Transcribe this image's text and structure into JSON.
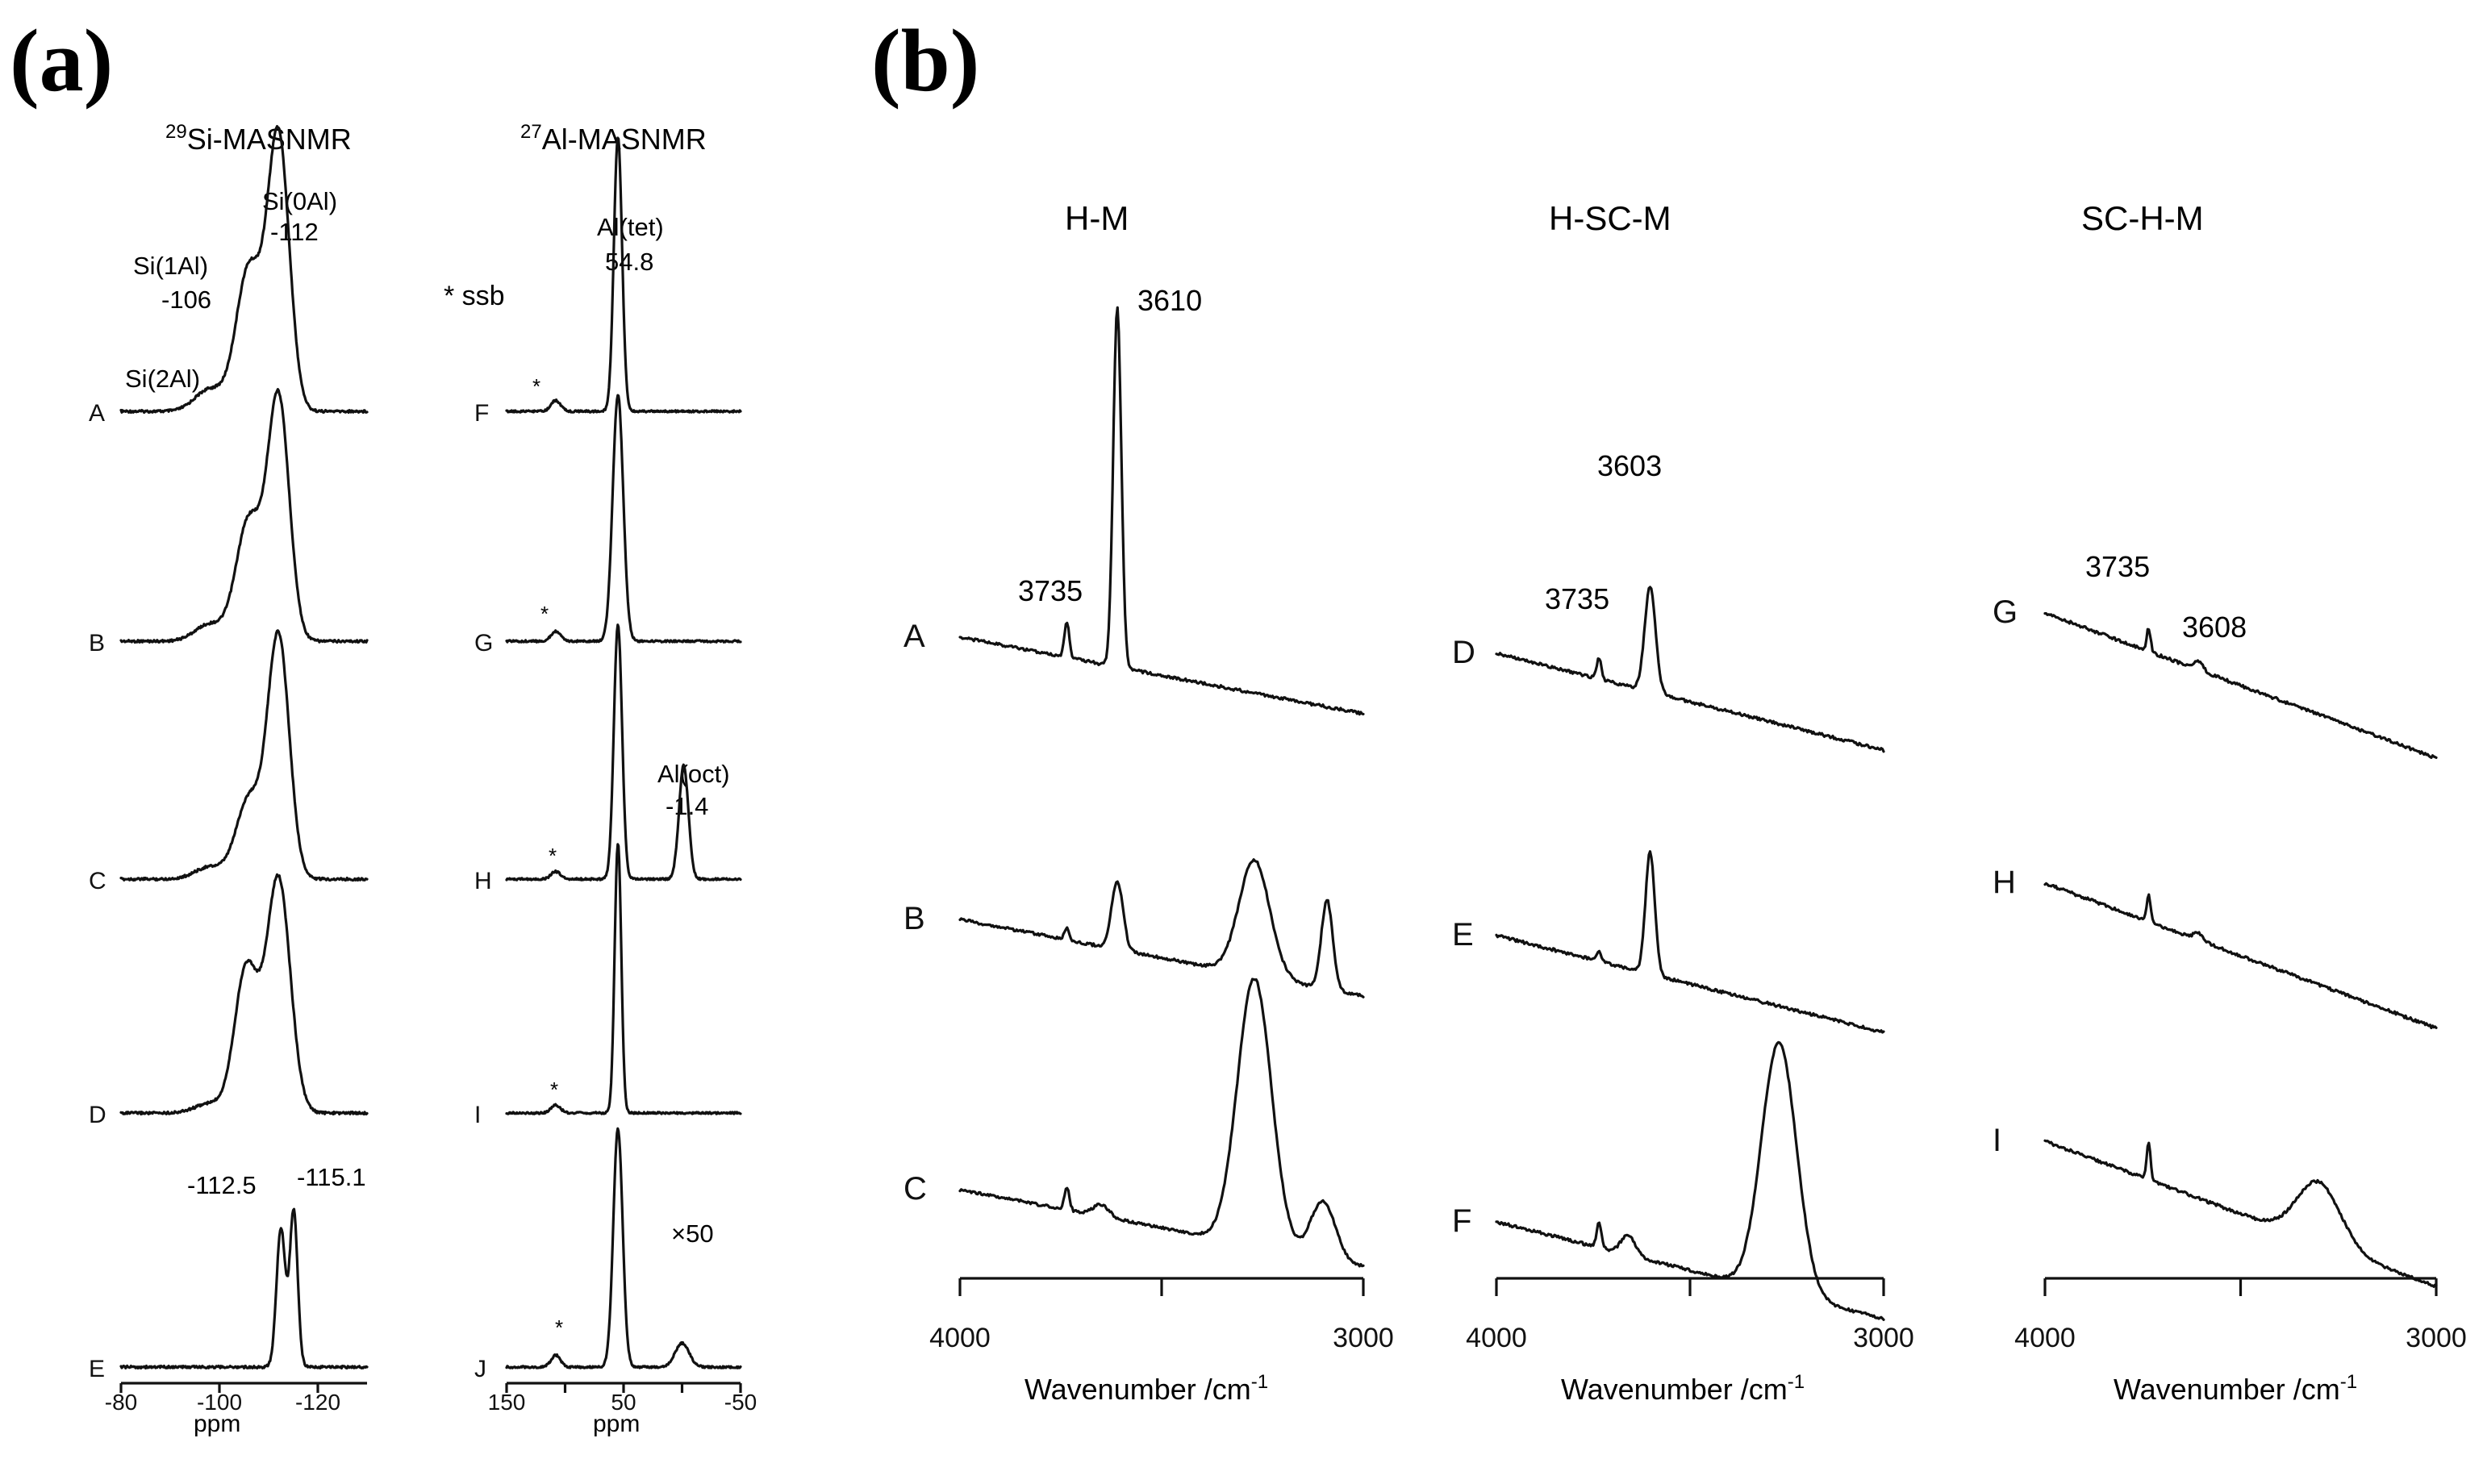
{
  "panel_labels": [
    "(a)",
    "(b)"
  ],
  "chart_data": [
    {
      "type": "line",
      "subtype": "stacked-spectra",
      "title": "29Si-MASNMR",
      "title_sup": "29",
      "title_main": "Si-MASNMR",
      "xlabel": "ppm",
      "xlim": [
        -80,
        -130
      ],
      "xticks": [
        -80,
        -100,
        -120
      ],
      "xtick_labels": [
        "-80",
        "-100",
        "-120"
      ],
      "series": [
        {
          "name": "A",
          "peaks": [
            {
              "pos": -98,
              "h": 0.08,
              "w": 3
            },
            {
              "pos": -106,
              "h": 0.52,
              "w": 2.6
            },
            {
              "pos": -112,
              "h": 1.0,
              "w": 2.2
            }
          ]
        },
        {
          "name": "B",
          "peaks": [
            {
              "pos": -98,
              "h": 0.07,
              "w": 3
            },
            {
              "pos": -106,
              "h": 0.5,
              "w": 2.6
            },
            {
              "pos": -112,
              "h": 1.0,
              "w": 2.2
            }
          ]
        },
        {
          "name": "C",
          "peaks": [
            {
              "pos": -98,
              "h": 0.05,
              "w": 3
            },
            {
              "pos": -106,
              "h": 0.33,
              "w": 2.6
            },
            {
              "pos": -112,
              "h": 1.0,
              "w": 2.2
            }
          ]
        },
        {
          "name": "D",
          "peaks": [
            {
              "pos": -98,
              "h": 0.04,
              "w": 3
            },
            {
              "pos": -105.5,
              "h": 0.62,
              "w": 2.4
            },
            {
              "pos": -112,
              "h": 1.0,
              "w": 2.4
            }
          ]
        },
        {
          "name": "E",
          "peaks": [
            {
              "pos": -112.5,
              "h": 0.78,
              "w": 0.9
            },
            {
              "pos": -115.1,
              "h": 0.88,
              "w": 0.8
            }
          ]
        }
      ],
      "annotations": [
        "Si(0Al)",
        "-112",
        "Si(1Al)",
        "-106",
        "Si(2Al)",
        "-112.5",
        "-115.1"
      ]
    },
    {
      "type": "line",
      "subtype": "stacked-spectra",
      "title": "27Al-MASNMR",
      "title_sup": "27",
      "title_main": "Al-MASNMR",
      "xlabel": "ppm",
      "xlim": [
        150,
        -50
      ],
      "xticks": [
        150,
        100,
        50,
        0,
        -50
      ],
      "xtick_labels": [
        "150",
        "",
        "50",
        "",
        "-50"
      ],
      "legend": "* ssb",
      "series": [
        {
          "name": "F",
          "peaks": [
            {
              "pos": 54.8,
              "h": 1.0,
              "w": 3.5
            },
            {
              "pos": 108,
              "h": 0.04,
              "w": 4
            }
          ]
        },
        {
          "name": "G",
          "peaks": [
            {
              "pos": 54.8,
              "h": 1.0,
              "w": 4.5
            },
            {
              "pos": 108,
              "h": 0.04,
              "w": 4
            }
          ]
        },
        {
          "name": "H",
          "peaks": [
            {
              "pos": 54.8,
              "h": 1.0,
              "w": 3.5
            },
            {
              "pos": -1.4,
              "h": 0.45,
              "w": 4
            },
            {
              "pos": 108,
              "h": 0.03,
              "w": 4
            }
          ]
        },
        {
          "name": "I",
          "peaks": [
            {
              "pos": 54.8,
              "h": 1.0,
              "w": 2.8
            },
            {
              "pos": 108,
              "h": 0.03,
              "w": 4
            }
          ]
        },
        {
          "name": "J",
          "peaks": [
            {
              "pos": 54.8,
              "h": 1.0,
              "w": 4
            },
            {
              "pos": 108,
              "h": 0.05,
              "w": 4
            },
            {
              "pos": 0,
              "h": 0.1,
              "w": 6
            }
          ]
        }
      ],
      "annotations": [
        "Al(tet)",
        "54.8",
        "Al(oct)",
        "-1.4",
        "×50",
        "*"
      ]
    },
    {
      "type": "line",
      "subtype": "stacked-spectra",
      "title": "H-M",
      "xlabel": "Wavenumber /cm",
      "xlabel_sup": "-1",
      "xlim": [
        4000,
        3000
      ],
      "xticks": [
        4000,
        3500,
        3000
      ],
      "xtick_labels": [
        "4000",
        "",
        "3000"
      ],
      "series": [
        {
          "name": "A",
          "peaks": [
            {
              "pos": 3735,
              "h": 0.1,
              "w": 6
            },
            {
              "pos": 3610,
              "h": 1.0,
              "w": 10
            }
          ]
        },
        {
          "name": "B",
          "peaks": [
            {
              "pos": 3735,
              "h": 0.06,
              "w": 6
            },
            {
              "pos": 3610,
              "h": 0.37,
              "w": 14
            },
            {
              "pos": 3270,
              "h": 0.62,
              "w": 38
            },
            {
              "pos": 3090,
              "h": 0.48,
              "w": 14
            }
          ]
        },
        {
          "name": "C",
          "peaks": [
            {
              "pos": 3735,
              "h": 0.08,
              "w": 6
            },
            {
              "pos": 3650,
              "h": 0.04,
              "w": 20
            },
            {
              "pos": 3270,
              "h": 0.92,
              "w": 42
            },
            {
              "pos": 3100,
              "h": 0.2,
              "w": 30
            }
          ]
        }
      ],
      "annotations": [
        "3610",
        "3735"
      ]
    },
    {
      "type": "line",
      "subtype": "stacked-spectra",
      "title": "H-SC-M",
      "xlabel": "Wavenumber /cm",
      "xlabel_sup": "-1",
      "xlim": [
        4000,
        3000
      ],
      "xticks": [
        4000,
        3500,
        3000
      ],
      "xtick_labels": [
        "4000",
        "",
        "3000"
      ],
      "series": [
        {
          "name": "D",
          "peaks": [
            {
              "pos": 3735,
              "h": 0.12,
              "w": 6
            },
            {
              "pos": 3603,
              "h": 0.62,
              "w": 14
            }
          ]
        },
        {
          "name": "E",
          "peaks": [
            {
              "pos": 3735,
              "h": 0.06,
              "w": 6
            },
            {
              "pos": 3603,
              "h": 0.72,
              "w": 12
            }
          ]
        },
        {
          "name": "F",
          "peaks": [
            {
              "pos": 3735,
              "h": 0.1,
              "w": 6
            },
            {
              "pos": 3660,
              "h": 0.08,
              "w": 18
            },
            {
              "pos": 3270,
              "h": 1.0,
              "w": 45
            }
          ]
        }
      ],
      "annotations": [
        "3603",
        "3735"
      ]
    },
    {
      "type": "line",
      "subtype": "stacked-spectra",
      "title": "SC-H-M",
      "xlabel": "Wavenumber /cm",
      "xlabel_sup": "-1",
      "xlim": [
        4000,
        3000
      ],
      "xticks": [
        4000,
        3500,
        3000
      ],
      "xtick_labels": [
        "4000",
        "",
        "3000"
      ],
      "series": [
        {
          "name": "G",
          "peaks": [
            {
              "pos": 3735,
              "h": 0.16,
              "w": 5
            },
            {
              "pos": 3608,
              "h": 0.06,
              "w": 12
            }
          ]
        },
        {
          "name": "H",
          "peaks": [
            {
              "pos": 3735,
              "h": 0.18,
              "w": 5
            },
            {
              "pos": 3608,
              "h": 0.05,
              "w": 12
            }
          ]
        },
        {
          "name": "I",
          "peaks": [
            {
              "pos": 3735,
              "h": 0.25,
              "w": 5
            },
            {
              "pos": 3300,
              "h": 0.42,
              "w": 55
            }
          ]
        }
      ],
      "annotations": [
        "3735",
        "3608"
      ]
    }
  ]
}
